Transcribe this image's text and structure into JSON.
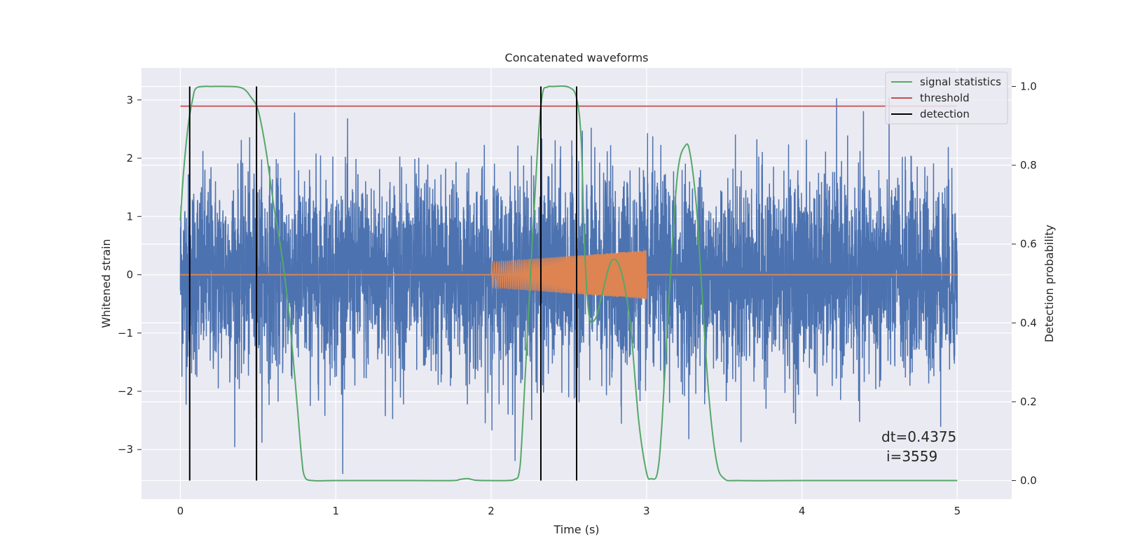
{
  "chart_data": {
    "type": "line",
    "title": "Concatenated waveforms",
    "xlabel": "Time (s)",
    "ylabel": "Whitened strain",
    "y2label": "Detection probability",
    "xlim": [
      -0.25,
      5.35
    ],
    "ylim": [
      -3.85,
      3.55
    ],
    "y2lim": [
      -0.047,
      1.047
    ],
    "xticks": [
      0,
      1,
      2,
      3,
      4,
      5
    ],
    "yticks": [
      -3,
      -2,
      -1,
      0,
      1,
      2,
      3
    ],
    "y2ticks": [
      0.0,
      0.2,
      0.4,
      0.6,
      0.8,
      1.0
    ],
    "grid": true,
    "legend_position": "top-right",
    "legend": [
      {
        "label": "signal statistics",
        "color": "#55a868"
      },
      {
        "label": "threshold",
        "color": "#c44e52"
      },
      {
        "label": "detection",
        "color": "#000000"
      }
    ],
    "strain_noise": {
      "color": "#4c72b0",
      "x_range": [
        0,
        5
      ],
      "amplitude_typical": 0.85,
      "amplitude_peak": 3.5
    },
    "injected_signal": {
      "color": "#dd8452",
      "x_range": [
        2.0,
        3.0
      ],
      "amplitude_start": 0.22,
      "amplitude_end": 0.42,
      "baseline_range": [
        0,
        5
      ]
    },
    "signal_statistics": {
      "color": "#55a868",
      "axis": "right",
      "x": [
        0.0,
        0.02,
        0.05,
        0.08,
        0.1,
        0.15,
        0.2,
        0.3,
        0.38,
        0.42,
        0.45,
        0.5,
        0.55,
        0.6,
        0.65,
        0.7,
        0.75,
        0.78,
        0.8,
        0.85,
        1.0,
        1.5,
        1.75,
        1.8,
        1.85,
        1.9,
        2.0,
        2.1,
        2.15,
        2.18,
        2.2,
        2.25,
        2.3,
        2.33,
        2.36,
        2.4,
        2.5,
        2.55,
        2.58,
        2.6,
        2.63,
        2.67,
        2.7,
        2.75,
        2.78,
        2.82,
        2.86,
        2.9,
        2.95,
        3.0,
        3.03,
        3.07,
        3.1,
        3.15,
        3.2,
        3.25,
        3.28,
        3.32,
        3.35,
        3.4,
        3.45,
        3.5,
        3.6,
        4.0,
        4.5,
        5.0
      ],
      "y": [
        0.66,
        0.78,
        0.9,
        0.97,
        0.995,
        1.0,
        1.0,
        1.0,
        0.998,
        0.99,
        0.975,
        0.94,
        0.84,
        0.7,
        0.58,
        0.42,
        0.2,
        0.06,
        0.01,
        0.0,
        0.0,
        0.0,
        0.0,
        0.003,
        0.005,
        0.001,
        0.0,
        0.0,
        0.003,
        0.02,
        0.12,
        0.5,
        0.85,
        0.98,
        0.998,
        1.0,
        0.998,
        0.97,
        0.86,
        0.6,
        0.42,
        0.41,
        0.45,
        0.53,
        0.56,
        0.55,
        0.49,
        0.38,
        0.15,
        0.02,
        0.005,
        0.02,
        0.15,
        0.5,
        0.78,
        0.85,
        0.83,
        0.7,
        0.52,
        0.22,
        0.05,
        0.005,
        0.0,
        0.0,
        0.0,
        0.0
      ]
    },
    "threshold": {
      "color": "#c44e52",
      "axis": "right",
      "value": 0.95,
      "x_range": [
        0,
        5.0
      ]
    },
    "detections": {
      "color": "#000000",
      "x": [
        0.06,
        0.49,
        2.32,
        2.55
      ],
      "y_range": [
        0.0,
        1.0
      ],
      "axis": "right"
    },
    "annotations": [
      "dt=0.4375",
      "i=3559"
    ]
  }
}
